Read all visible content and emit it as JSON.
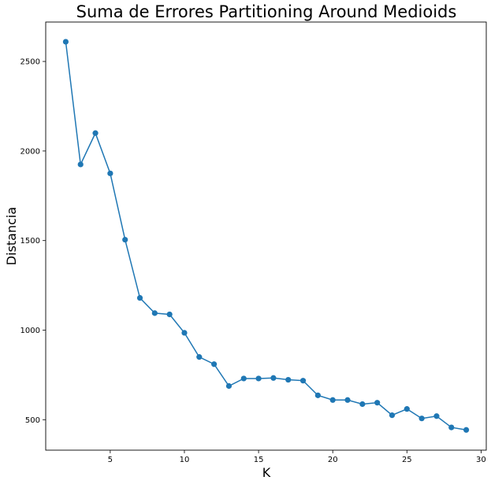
{
  "chart_data": {
    "type": "line",
    "title": "Suma de Errores Partitioning Around Medioids",
    "xlabel": "K",
    "ylabel": "Distancia",
    "xlim": [
      0.65,
      30.35
    ],
    "ylim": [
      330,
      2720
    ],
    "xticks": [
      5,
      10,
      15,
      20,
      25,
      30
    ],
    "xtick_labels": [
      "5",
      "10",
      "15",
      "20",
      "25",
      "30"
    ],
    "yticks": [
      500,
      1000,
      1500,
      2000,
      2500
    ],
    "ytick_labels": [
      "500",
      "1000",
      "1500",
      "2000",
      "2500"
    ],
    "grid": false,
    "color": "#1f77b4",
    "x": [
      2,
      3,
      4,
      5,
      6,
      7,
      8,
      9,
      10,
      11,
      12,
      13,
      14,
      15,
      16,
      17,
      18,
      19,
      20,
      21,
      22,
      23,
      24,
      25,
      26,
      27,
      28,
      29
    ],
    "y": [
      2610,
      1925,
      2100,
      1875,
      1505,
      1180,
      1095,
      1088,
      985,
      850,
      810,
      688,
      730,
      730,
      733,
      723,
      718,
      636,
      610,
      610,
      587,
      595,
      525,
      560,
      507,
      520,
      457,
      443
    ]
  }
}
